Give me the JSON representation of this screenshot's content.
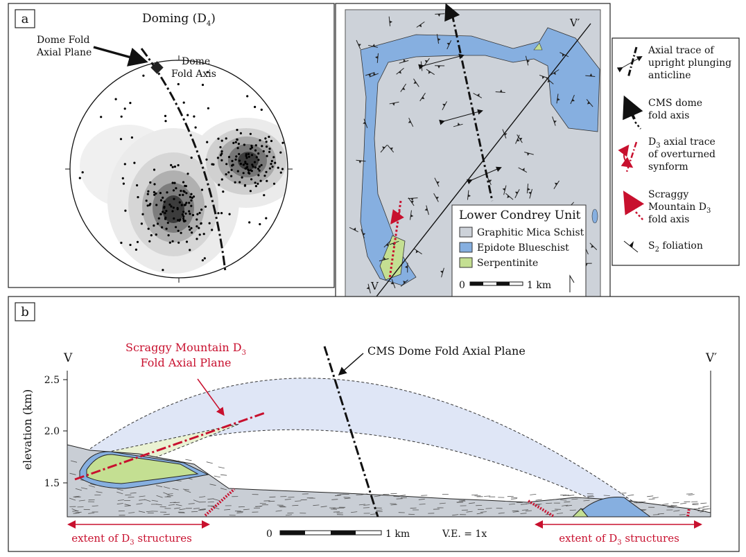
{
  "panel_a": {
    "label": "a",
    "title": [
      "Doming (D",
      "4",
      ")"
    ],
    "axial_plane_note": [
      "Dome Fold",
      "Axial Plane"
    ],
    "fold_axis_note": [
      "Dome",
      "Fold Axis"
    ]
  },
  "map": {
    "section_ends": [
      "V",
      "V′"
    ],
    "legend": {
      "title": "Lower Condrey Unit",
      "items": [
        "Graphitic Mica Schist",
        "Epidote Blueschist",
        "Serpentinite"
      ],
      "scale": [
        "0",
        "1 km"
      ]
    }
  },
  "key": {
    "items": [
      [
        [
          "Axial trace of"
        ],
        [
          "upright plunging"
        ],
        [
          "anticline"
        ]
      ],
      [
        [
          "CMS dome"
        ],
        [
          "fold axis"
        ]
      ],
      [
        [
          "D",
          "3",
          " axial trace"
        ],
        [
          "of overturned"
        ],
        [
          "synform"
        ]
      ],
      [
        [
          "Scraggy"
        ],
        [
          "Mountain D",
          "3"
        ],
        [
          "fold axis"
        ]
      ],
      [
        [
          "S",
          "2",
          " foliation"
        ]
      ]
    ]
  },
  "panel_b": {
    "label": "b",
    "section_ends": [
      "V",
      "V′"
    ],
    "y_axis_label": "elevation (km)",
    "y_ticks": [
      "1.5",
      "2.0",
      "2.5"
    ],
    "scraggy_note": [
      [
        "Scraggy Mountain D",
        "3"
      ],
      [
        "Fold Axial Plane"
      ]
    ],
    "cms_note": "CMS Dome Fold Axial Plane",
    "extent_labels": [
      [
        "extent of D",
        "3",
        " structures"
      ],
      [
        "extent of D",
        "3",
        " structures"
      ]
    ],
    "scale": [
      "0",
      "1 km"
    ],
    "vertical_exaggeration": "V.E.  = 1x"
  }
}
